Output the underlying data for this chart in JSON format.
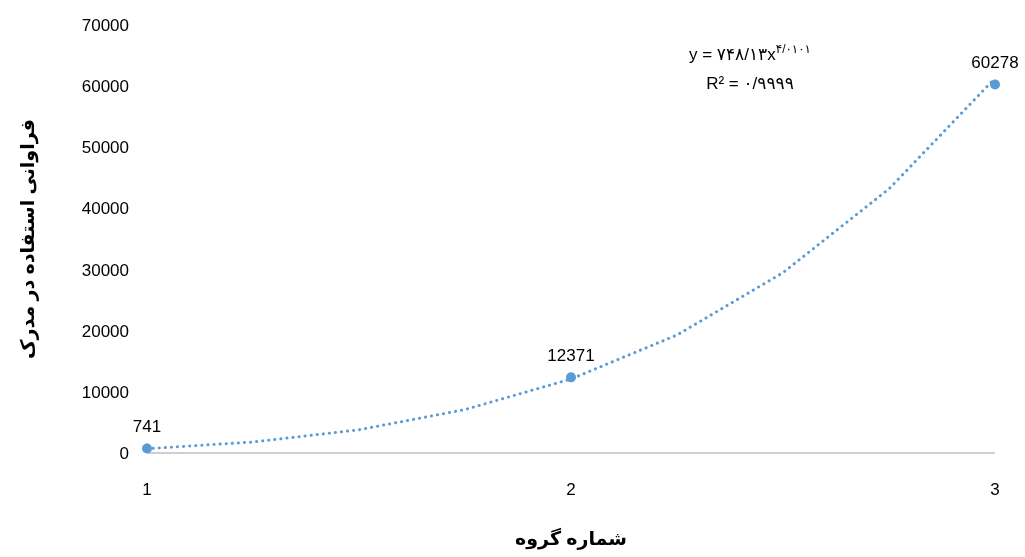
{
  "chart_data": {
    "type": "scatter",
    "xlabel": "شماره گروه",
    "ylabel": "فراوانی استفاده در مدرک",
    "x": [
      1,
      2,
      3
    ],
    "xlim": [
      1,
      3
    ],
    "xticks": [
      1,
      2,
      3
    ],
    "ylim": [
      0,
      70000
    ],
    "yticks": [
      0,
      10000,
      20000,
      30000,
      40000,
      50000,
      60000,
      70000
    ],
    "grid": false,
    "marker": "circle",
    "series": [
      {
        "color": "#5b9bd5",
        "values": [
          741,
          12371,
          60278
        ],
        "value_labels": [
          "741",
          "12371",
          "60278"
        ]
      },
      {
        "type": "line",
        "color": "#5b9bd5",
        "line_style": "dotted",
        "marker": "none",
        "x": [
          1,
          1.25,
          1.5,
          1.75,
          2,
          2.25,
          2.5,
          2.75,
          3
        ],
        "values": [
          700,
          1800,
          3800,
          7100,
          12100,
          19300,
          29500,
          43200,
          61300
        ]
      }
    ],
    "annotations": [
      "y = ۷۴۸/۱۳x$^{۴/۰۱۰۱}$",
      "R² = ۰/۹۹۹۹"
    ]
  }
}
